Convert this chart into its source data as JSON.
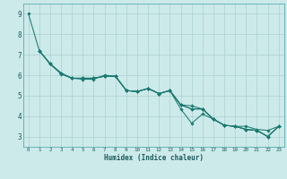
{
  "xlabel": "Humidex (Indice chaleur)",
  "bg_color": "#cdeaea",
  "grid_color": "#b0d4d4",
  "line_color": "#1a7a70",
  "xlim": [
    -0.5,
    23.5
  ],
  "ylim": [
    2.5,
    9.5
  ],
  "yticks": [
    3,
    4,
    5,
    6,
    7,
    8,
    9
  ],
  "xticks": [
    0,
    1,
    2,
    3,
    4,
    5,
    6,
    7,
    8,
    9,
    10,
    11,
    12,
    13,
    14,
    15,
    16,
    17,
    18,
    19,
    20,
    21,
    22,
    23
  ],
  "lines": [
    {
      "x": [
        0,
        1,
        2,
        3,
        4,
        5,
        6,
        7,
        8,
        9,
        10,
        11,
        12,
        13,
        14,
        15,
        16,
        17,
        18,
        19,
        20,
        21,
        22,
        23
      ],
      "y": [
        9.0,
        7.2,
        6.55,
        6.05,
        5.85,
        5.8,
        5.8,
        6.0,
        5.95,
        5.25,
        5.2,
        5.35,
        5.1,
        5.25,
        4.55,
        4.35,
        4.35,
        3.85,
        3.55,
        3.5,
        3.35,
        3.3,
        3.0,
        3.5
      ]
    },
    {
      "x": [
        1,
        2,
        3,
        4,
        5,
        6,
        7,
        8,
        9,
        10,
        11,
        12,
        13,
        14,
        15,
        16,
        17,
        18,
        19,
        20,
        21,
        22,
        23
      ],
      "y": [
        7.2,
        6.55,
        6.1,
        5.85,
        5.85,
        5.85,
        5.95,
        5.95,
        5.25,
        5.2,
        5.35,
        5.1,
        5.25,
        4.55,
        4.5,
        4.35,
        3.85,
        3.55,
        3.5,
        3.35,
        3.3,
        3.0,
        3.5
      ]
    },
    {
      "x": [
        1,
        2,
        3,
        4,
        5,
        6,
        7,
        8,
        9,
        10,
        11,
        12,
        13,
        14,
        15,
        16,
        17,
        18,
        19,
        20,
        21,
        22,
        23
      ],
      "y": [
        7.2,
        6.55,
        6.1,
        5.85,
        5.85,
        5.85,
        5.95,
        5.95,
        5.25,
        5.2,
        5.35,
        5.1,
        5.25,
        4.35,
        3.65,
        4.1,
        3.85,
        3.55,
        3.5,
        3.35,
        3.3,
        3.0,
        3.5
      ]
    },
    {
      "x": [
        1,
        2,
        3,
        4,
        5,
        6,
        7,
        8,
        9,
        10,
        11,
        12,
        13,
        14,
        15,
        16,
        17,
        18,
        19,
        20,
        21,
        22,
        23
      ],
      "y": [
        7.2,
        6.55,
        6.1,
        5.85,
        5.85,
        5.85,
        5.95,
        5.95,
        5.25,
        5.2,
        5.35,
        5.1,
        5.25,
        4.55,
        4.35,
        4.35,
        3.85,
        3.55,
        3.5,
        3.5,
        3.35,
        3.3,
        3.5
      ]
    }
  ]
}
